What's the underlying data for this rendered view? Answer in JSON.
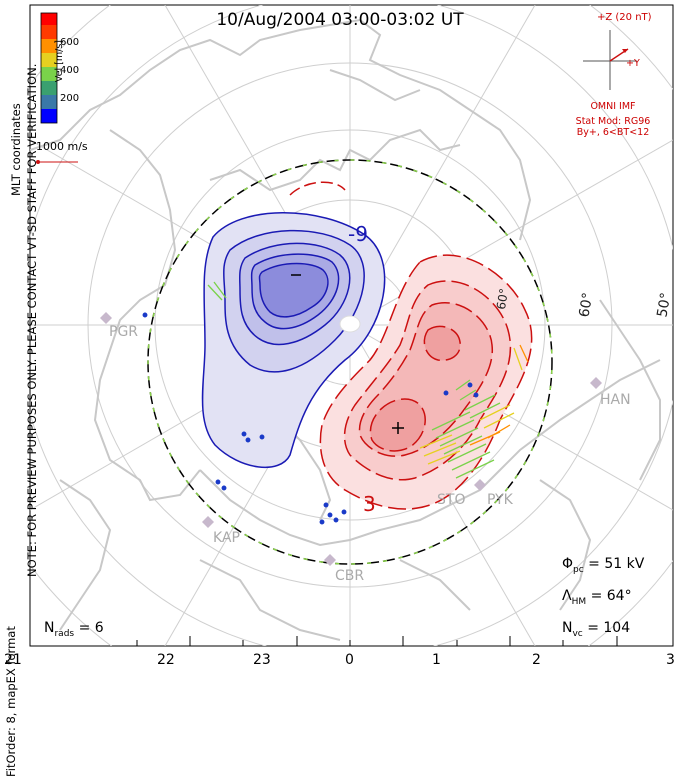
{
  "title": "10/Aug/2004 03:00-03:02 UT",
  "side_notes": {
    "coords": "MLT coordinates",
    "preview": "NOTE: FOR PREVIEW PURPOSES ONLY. PLEASE CONTACT VT-SD STAFF FOR VERIFICATION.",
    "fit": "FitOrder: 8, mapEX format"
  },
  "colorbar": {
    "unit": "Vel [m/s]",
    "ticks": [
      "600",
      "400",
      "200"
    ],
    "colors": [
      "#0000ff",
      "#3a78a8",
      "#3aa070",
      "#7ad24a",
      "#e6d020",
      "#ff9000",
      "#ff3a00",
      "#ff0000"
    ]
  },
  "reference_vector": "1000 m/s",
  "imf": {
    "z_label": "+Z (20 nT)",
    "y_label": "+Y",
    "source": "OMNI IMF",
    "stat_mod": "Stat Mod: RG96",
    "condition": "By+, 6<BT<12"
  },
  "mlat_labels": [
    "60°",
    "50°",
    "60°"
  ],
  "stations": [
    "PGR",
    "KAP",
    "CBR",
    "STO",
    "PYK",
    "HAN"
  ],
  "potential_labels": [
    "-9",
    "3"
  ],
  "stats": {
    "phi_pc_label": "Φ",
    "phi_pc_sub": "pc",
    "phi_pc_value": "= 51 kV",
    "lambda_label": "Λ",
    "lambda_sub": "HM",
    "lambda_value": "= 64°",
    "nvc_label": "N",
    "nvc_sub": "vc",
    "nvc_value": "= 104",
    "nrads_label": "N",
    "nrads_sub": "rads",
    "nrads_value": "= 6"
  },
  "mlt_ticks": [
    "21",
    "22",
    "23",
    "0",
    "1",
    "2",
    "3"
  ],
  "colors": {
    "negative_cell": "#1a1ab4",
    "positive_cell": "#cc1010",
    "coastline": "#c8c8c8",
    "grid": "#cfcfcf"
  }
}
